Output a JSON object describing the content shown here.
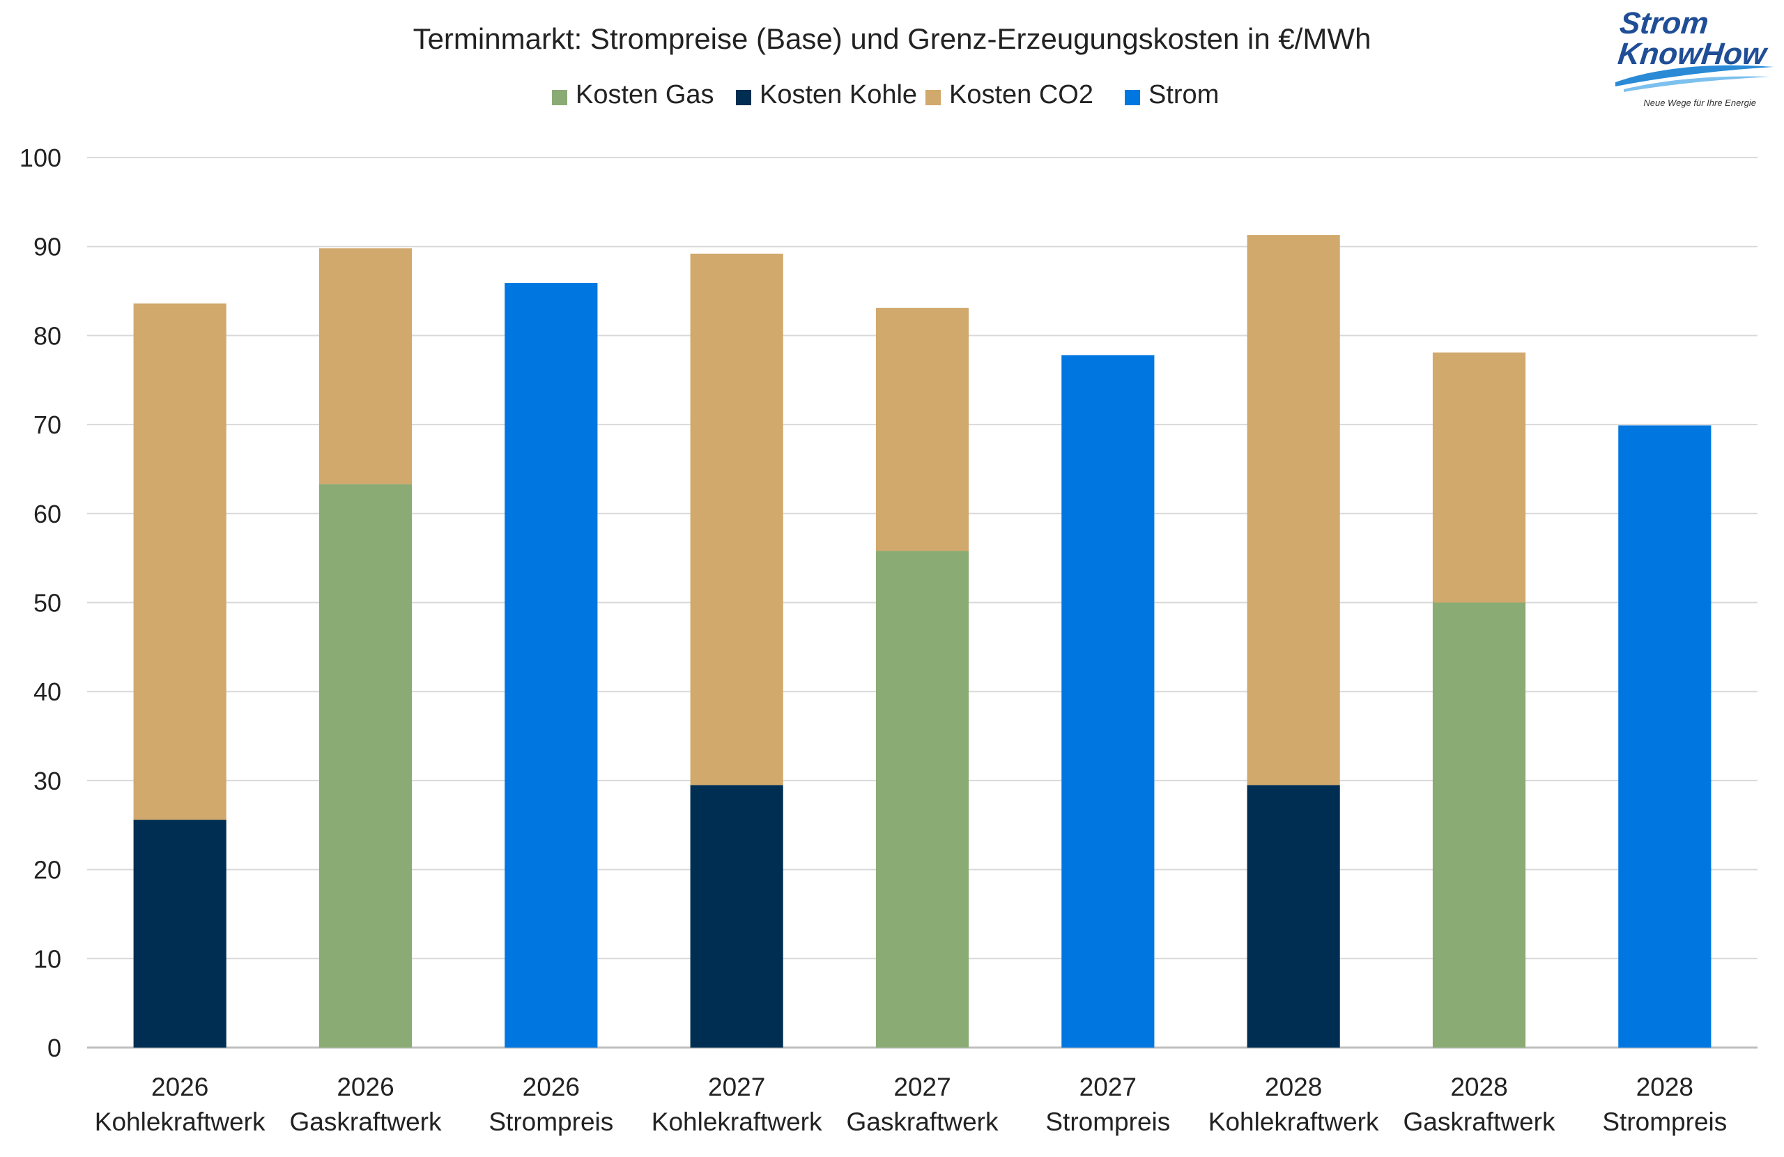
{
  "logo": {
    "line1": "Strom",
    "line2": "KnowHow",
    "tagline": "Neue Wege für Ihre Energie",
    "colors": {
      "text": "#1f4e96",
      "swoosh": "#2a8ad6"
    }
  },
  "chart_data": {
    "type": "bar",
    "stacked": true,
    "title": "Terminmarkt: Strompreise (Base) und Grenz-Erzeugungskosten in €/MWh",
    "xlabel": "",
    "ylabel": "",
    "ylim": [
      0,
      100
    ],
    "yticks": [
      0,
      10,
      20,
      30,
      40,
      50,
      60,
      70,
      80,
      90,
      100
    ],
    "grid": true,
    "legend_position": "top-center",
    "categories": [
      [
        "2026",
        "Kohlekraftwerk"
      ],
      [
        "2026",
        "Gaskraftwerk"
      ],
      [
        "2026",
        "Strompreis"
      ],
      [
        "2027",
        "Kohlekraftwerk"
      ],
      [
        "2027",
        "Gaskraftwerk"
      ],
      [
        "2027",
        "Strompreis"
      ],
      [
        "2028",
        "Kohlekraftwerk"
      ],
      [
        "2028",
        "Gaskraftwerk"
      ],
      [
        "2028",
        "Strompreis"
      ]
    ],
    "series": [
      {
        "name": "Kosten Gas",
        "color": "#8aab74",
        "values": [
          0,
          63.3,
          0,
          0,
          55.8,
          0,
          0,
          50.0,
          0
        ]
      },
      {
        "name": "Kosten Kohle",
        "color": "#002e52",
        "values": [
          25.6,
          0,
          0,
          29.5,
          0,
          0,
          29.5,
          0,
          0
        ]
      },
      {
        "name": "Kosten CO2",
        "color": "#d1a96d",
        "values": [
          58.0,
          26.5,
          0,
          59.7,
          27.3,
          0,
          61.8,
          28.1,
          0
        ]
      },
      {
        "name": "Strom",
        "color": "#0077e0",
        "values": [
          0,
          0,
          85.9,
          0,
          0,
          77.8,
          0,
          0,
          69.9
        ]
      }
    ]
  }
}
